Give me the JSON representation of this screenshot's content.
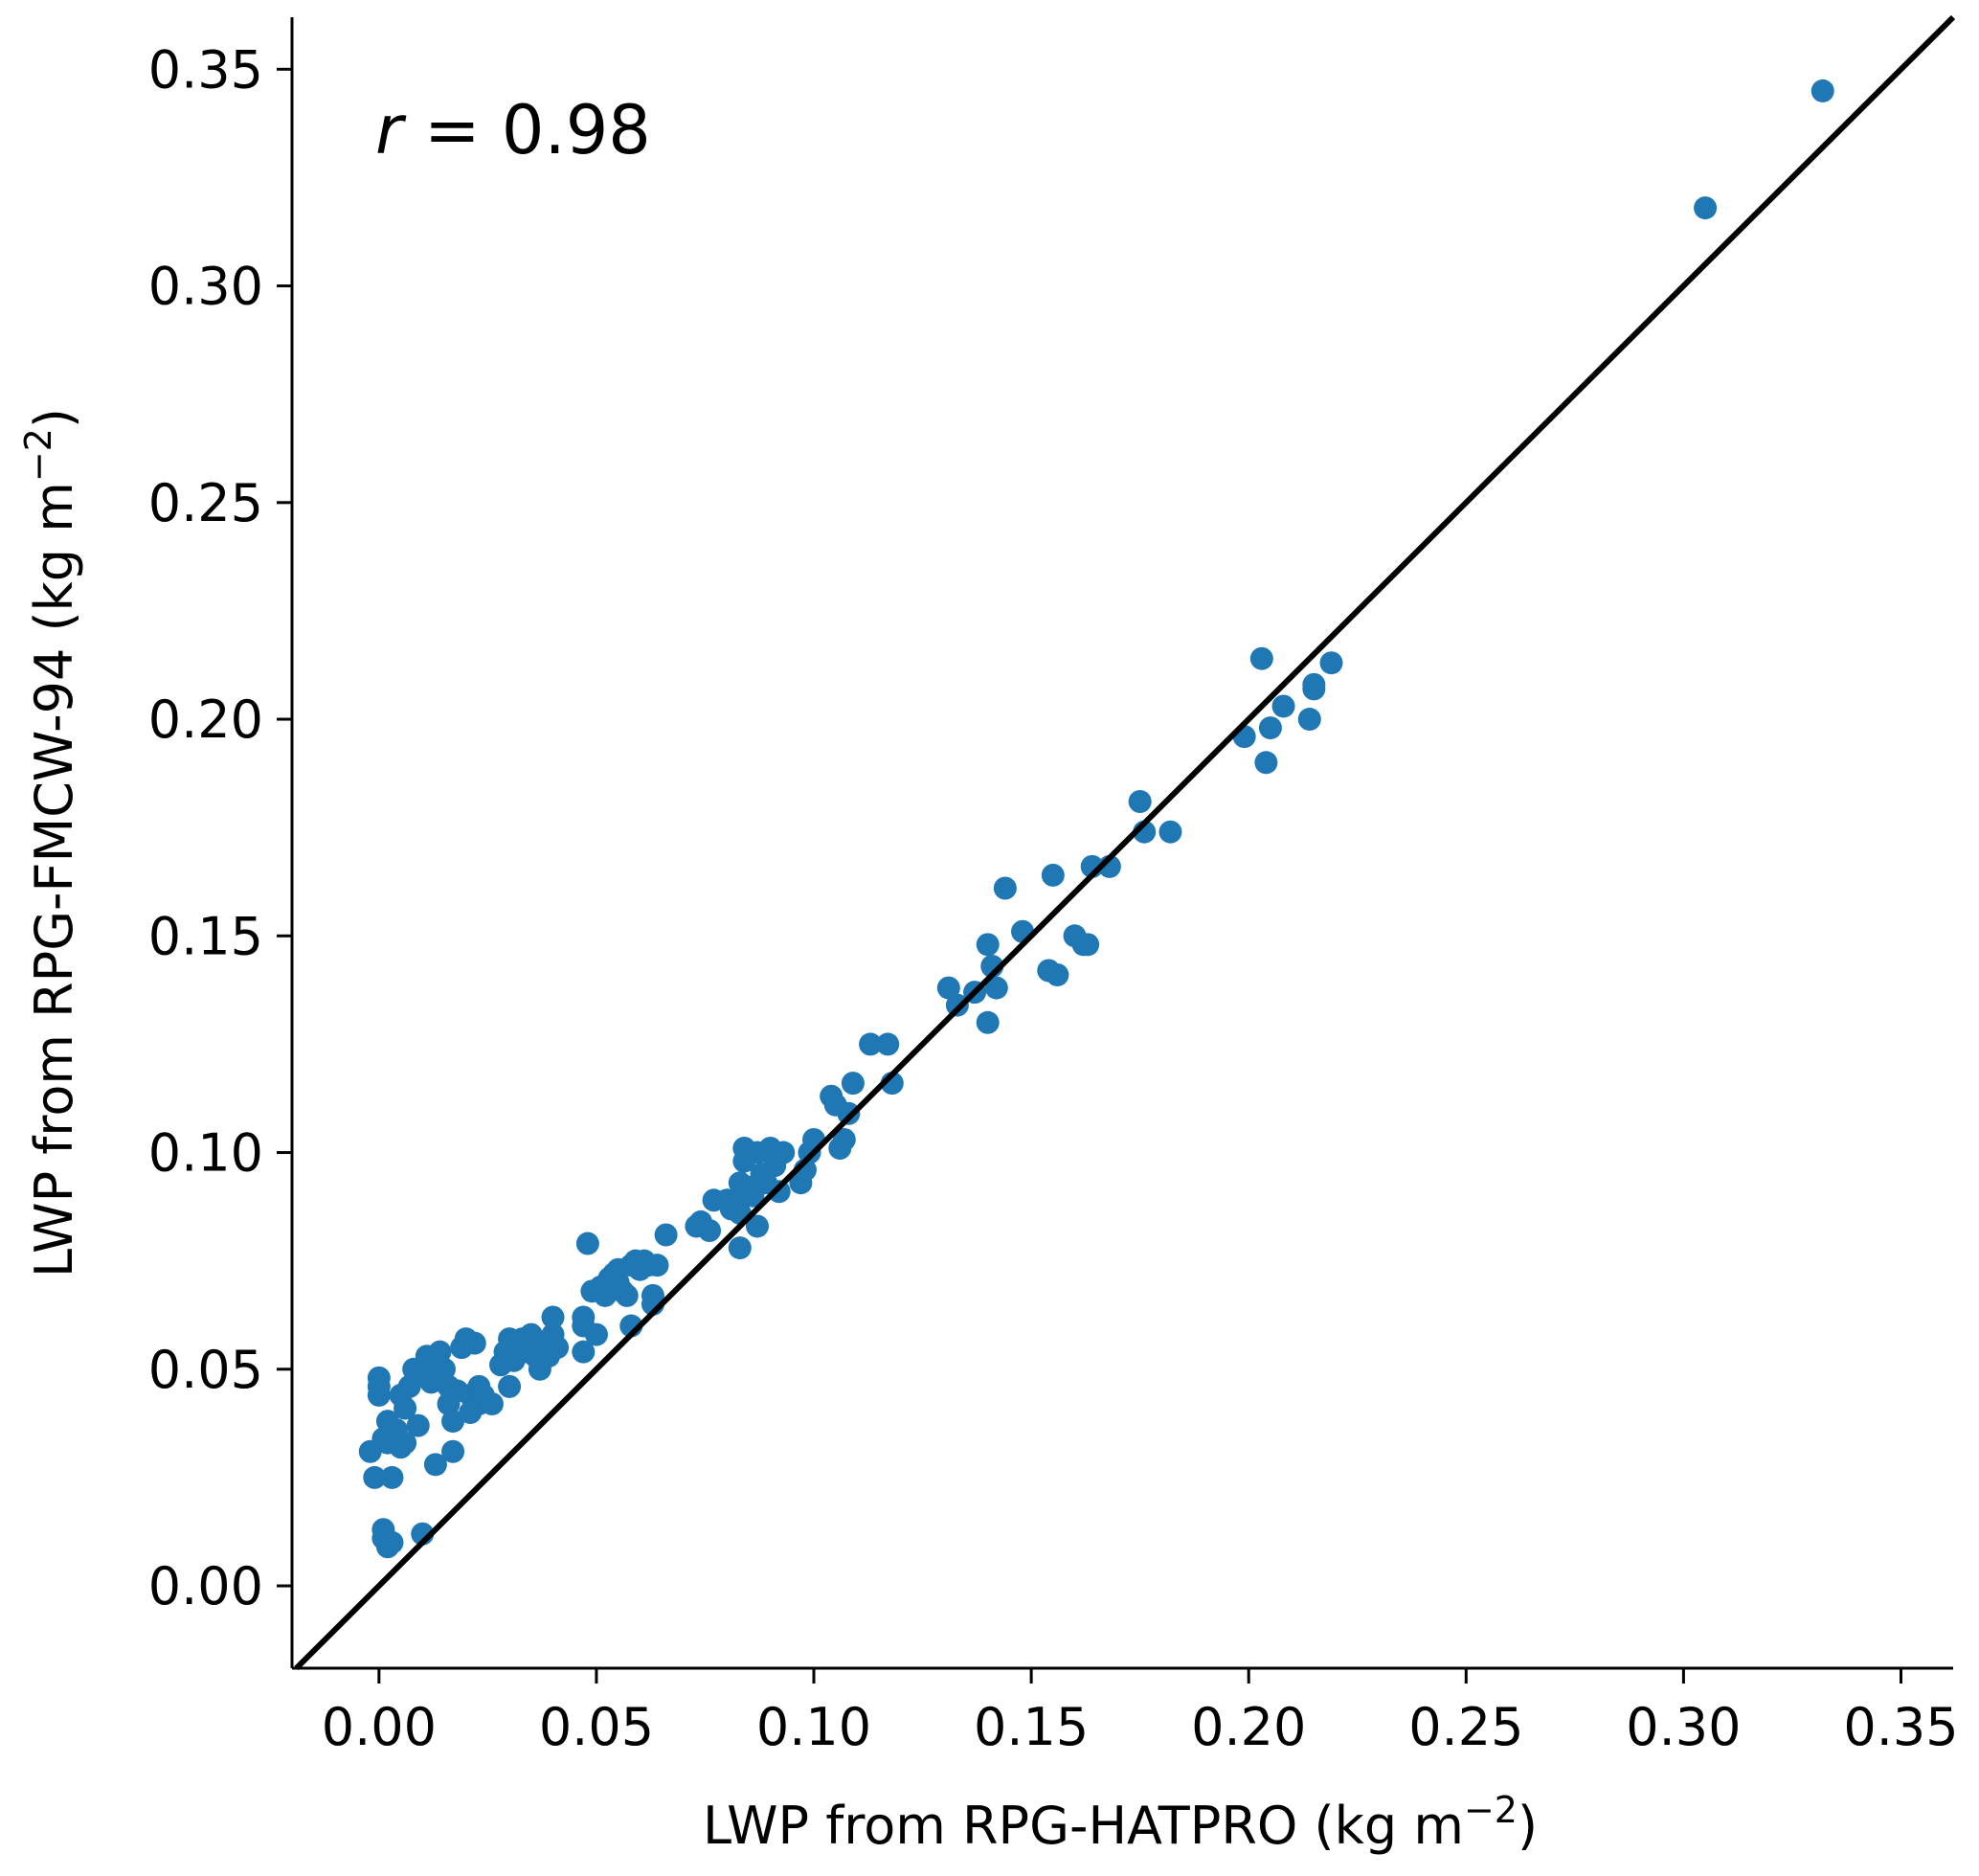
{
  "chart_data": {
    "type": "scatter",
    "title": "",
    "xlabel": "LWP from RPG-HATPRO (kg m",
    "xlabel_sup": "−2",
    "xlabel_end": ")",
    "ylabel": "LWP from RPG-FMCW-94 (kg m",
    "ylabel_sup": "−2",
    "ylabel_end": ")",
    "xlim": [
      -0.02,
      0.362
    ],
    "ylim": [
      -0.019,
      0.362
    ],
    "xticks": [
      0.0,
      0.05,
      0.1,
      0.15,
      0.2,
      0.25,
      0.3,
      0.35
    ],
    "xtick_labels": [
      "0.00",
      "0.05",
      "0.10",
      "0.15",
      "0.20",
      "0.25",
      "0.30",
      "0.35"
    ],
    "yticks": [
      0.0,
      0.05,
      0.1,
      0.15,
      0.2,
      0.25,
      0.3,
      0.35
    ],
    "ytick_labels": [
      "0.00",
      "0.05",
      "0.10",
      "0.15",
      "0.20",
      "0.25",
      "0.30",
      "0.35"
    ],
    "grid": false,
    "annotation": {
      "var": "r",
      "text": " = 0.98"
    },
    "reference_line": {
      "type": "one-to-one",
      "color": "#000000"
    },
    "marker_color": "#1f77b4",
    "points": [
      [
        -0.002,
        0.031
      ],
      [
        -0.001,
        0.025
      ],
      [
        0.0,
        0.046
      ],
      [
        0.0,
        0.048
      ],
      [
        0.0,
        0.044
      ],
      [
        0.001,
        0.034
      ],
      [
        0.001,
        0.013
      ],
      [
        0.001,
        0.011
      ],
      [
        0.002,
        0.009
      ],
      [
        0.002,
        0.038
      ],
      [
        0.002,
        0.033
      ],
      [
        0.003,
        0.025
      ],
      [
        0.003,
        0.01
      ],
      [
        0.004,
        0.036
      ],
      [
        0.005,
        0.032
      ],
      [
        0.005,
        0.044
      ],
      [
        0.006,
        0.041
      ],
      [
        0.007,
        0.046
      ],
      [
        0.006,
        0.033
      ],
      [
        0.008,
        0.05
      ],
      [
        0.009,
        0.037
      ],
      [
        0.01,
        0.049
      ],
      [
        0.01,
        0.012
      ],
      [
        0.011,
        0.053
      ],
      [
        0.012,
        0.047
      ],
      [
        0.013,
        0.052
      ],
      [
        0.013,
        0.028
      ],
      [
        0.014,
        0.054
      ],
      [
        0.015,
        0.05
      ],
      [
        0.016,
        0.042
      ],
      [
        0.016,
        0.046
      ],
      [
        0.017,
        0.038
      ],
      [
        0.017,
        0.031
      ],
      [
        0.018,
        0.045
      ],
      [
        0.019,
        0.055
      ],
      [
        0.02,
        0.057
      ],
      [
        0.021,
        0.044
      ],
      [
        0.021,
        0.04
      ],
      [
        0.022,
        0.056
      ],
      [
        0.023,
        0.042
      ],
      [
        0.023,
        0.046
      ],
      [
        0.024,
        0.044
      ],
      [
        0.026,
        0.042
      ],
      [
        0.028,
        0.051
      ],
      [
        0.029,
        0.054
      ],
      [
        0.03,
        0.057
      ],
      [
        0.03,
        0.046
      ],
      [
        0.031,
        0.052
      ],
      [
        0.032,
        0.055
      ],
      [
        0.033,
        0.057
      ],
      [
        0.034,
        0.054
      ],
      [
        0.035,
        0.058
      ],
      [
        0.036,
        0.053
      ],
      [
        0.037,
        0.05
      ],
      [
        0.038,
        0.055
      ],
      [
        0.039,
        0.053
      ],
      [
        0.04,
        0.058
      ],
      [
        0.04,
        0.062
      ],
      [
        0.041,
        0.055
      ],
      [
        0.047,
        0.054
      ],
      [
        0.047,
        0.06
      ],
      [
        0.047,
        0.062
      ],
      [
        0.048,
        0.079
      ],
      [
        0.05,
        0.058
      ],
      [
        0.049,
        0.068
      ],
      [
        0.051,
        0.069
      ],
      [
        0.052,
        0.067
      ],
      [
        0.053,
        0.071
      ],
      [
        0.054,
        0.072
      ],
      [
        0.055,
        0.07
      ],
      [
        0.055,
        0.073
      ],
      [
        0.056,
        0.068
      ],
      [
        0.057,
        0.067
      ],
      [
        0.058,
        0.074
      ],
      [
        0.058,
        0.06
      ],
      [
        0.059,
        0.075
      ],
      [
        0.06,
        0.073
      ],
      [
        0.061,
        0.075
      ],
      [
        0.062,
        0.074
      ],
      [
        0.063,
        0.067
      ],
      [
        0.063,
        0.065
      ],
      [
        0.064,
        0.074
      ],
      [
        0.066,
        0.081
      ],
      [
        0.073,
        0.083
      ],
      [
        0.074,
        0.084
      ],
      [
        0.076,
        0.082
      ],
      [
        0.077,
        0.089
      ],
      [
        0.08,
        0.089
      ],
      [
        0.081,
        0.087
      ],
      [
        0.082,
        0.089
      ],
      [
        0.083,
        0.078
      ],
      [
        0.083,
        0.086
      ],
      [
        0.083,
        0.093
      ],
      [
        0.084,
        0.098
      ],
      [
        0.084,
        0.101
      ],
      [
        0.085,
        0.092
      ],
      [
        0.086,
        0.09
      ],
      [
        0.087,
        0.1
      ],
      [
        0.087,
        0.083
      ],
      [
        0.088,
        0.095
      ],
      [
        0.089,
        0.093
      ],
      [
        0.09,
        0.101
      ],
      [
        0.091,
        0.097
      ],
      [
        0.092,
        0.091
      ],
      [
        0.093,
        0.1
      ],
      [
        0.097,
        0.093
      ],
      [
        0.098,
        0.096
      ],
      [
        0.099,
        0.1
      ],
      [
        0.1,
        0.103
      ],
      [
        0.104,
        0.113
      ],
      [
        0.105,
        0.111
      ],
      [
        0.106,
        0.101
      ],
      [
        0.107,
        0.103
      ],
      [
        0.108,
        0.109
      ],
      [
        0.109,
        0.116
      ],
      [
        0.113,
        0.125
      ],
      [
        0.117,
        0.125
      ],
      [
        0.118,
        0.116
      ],
      [
        0.131,
        0.138
      ],
      [
        0.133,
        0.134
      ],
      [
        0.137,
        0.137
      ],
      [
        0.14,
        0.13
      ],
      [
        0.14,
        0.148
      ],
      [
        0.141,
        0.143
      ],
      [
        0.142,
        0.138
      ],
      [
        0.144,
        0.161
      ],
      [
        0.148,
        0.151
      ],
      [
        0.154,
        0.142
      ],
      [
        0.155,
        0.164
      ],
      [
        0.156,
        0.141
      ],
      [
        0.16,
        0.15
      ],
      [
        0.162,
        0.148
      ],
      [
        0.163,
        0.148
      ],
      [
        0.164,
        0.166
      ],
      [
        0.168,
        0.166
      ],
      [
        0.175,
        0.181
      ],
      [
        0.176,
        0.174
      ],
      [
        0.182,
        0.174
      ],
      [
        0.199,
        0.196
      ],
      [
        0.203,
        0.214
      ],
      [
        0.204,
        0.19
      ],
      [
        0.205,
        0.198
      ],
      [
        0.208,
        0.203
      ],
      [
        0.214,
        0.2
      ],
      [
        0.215,
        0.207
      ],
      [
        0.215,
        0.208
      ],
      [
        0.219,
        0.213
      ],
      [
        0.305,
        0.318
      ],
      [
        0.332,
        0.345
      ]
    ]
  }
}
